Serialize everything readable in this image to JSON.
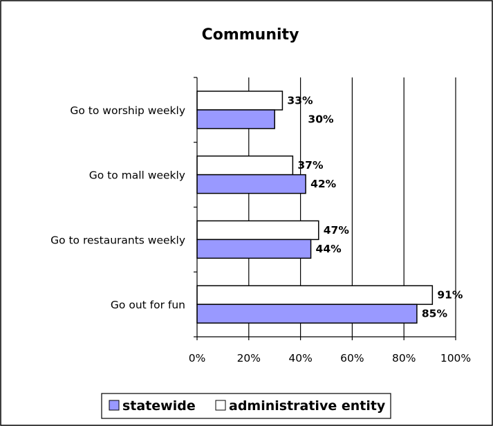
{
  "chart_data": {
    "type": "bar",
    "orientation": "horizontal",
    "title": "Community",
    "categories": [
      "Go to worship weekly",
      "Go to mall weekly",
      "Go to restaurants weekly",
      "Go out for fun"
    ],
    "series": [
      {
        "name": "administrative entity",
        "values": [
          33,
          37,
          47,
          91
        ],
        "labels": [
          "33%",
          "37%",
          "47%",
          "91%"
        ],
        "color": "#ffffff"
      },
      {
        "name": "statewide",
        "values": [
          30,
          42,
          44,
          85
        ],
        "labels": [
          "30%",
          "42%",
          "44%",
          "85%"
        ],
        "color": "#9999ff"
      }
    ],
    "x_ticks": [
      "0%",
      "20%",
      "40%",
      "60%",
      "80%",
      "100%"
    ],
    "xlim": [
      0,
      100
    ],
    "grid": "vertical",
    "legend": {
      "position": "bottom",
      "entries": [
        {
          "label": "statewide",
          "color": "#9999ff"
        },
        {
          "label": "administrative entity",
          "color": "#ffffff"
        }
      ]
    }
  }
}
